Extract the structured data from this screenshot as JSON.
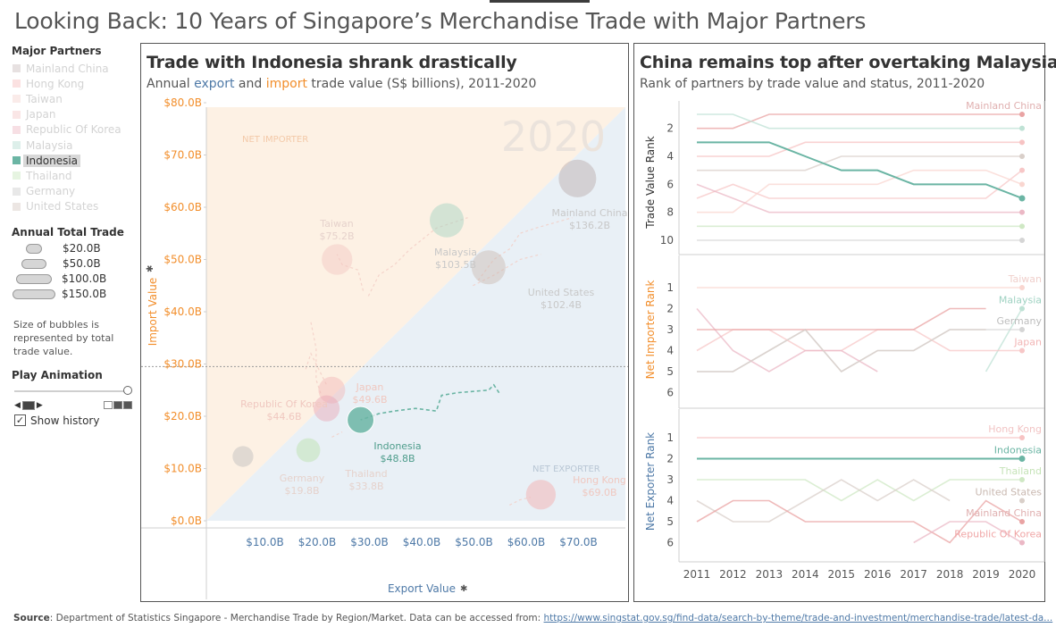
{
  "title": "Looking Back: 10 Years of Singapore’s Merchandise Trade with Major Partners",
  "sidebar": {
    "partners_title": "Major Partners",
    "partners": [
      {
        "name": "Mainland China",
        "color": "#b9a8a8",
        "active": false
      },
      {
        "name": "Hong Kong",
        "color": "#f4a9a8",
        "active": false
      },
      {
        "name": "Taiwan",
        "color": "#f1c6c0",
        "active": false
      },
      {
        "name": "Japan",
        "color": "#f2b6b6",
        "active": false
      },
      {
        "name": "Republic Of Korea",
        "color": "#e8a3b3",
        "active": false
      },
      {
        "name": "Malaysia",
        "color": "#9fd2c2",
        "active": false
      },
      {
        "name": "Indonesia",
        "color": "#6bb5a4",
        "active": true
      },
      {
        "name": "Thailand",
        "color": "#b8dfa8",
        "active": false
      },
      {
        "name": "Germany",
        "color": "#bdbdbd",
        "active": false
      },
      {
        "name": "United States",
        "color": "#c9b8b0",
        "active": false
      }
    ],
    "size_title": "Annual Total Trade",
    "size_legend": [
      "$20.0B",
      "$50.0B",
      "$100.0B",
      "$150.0B"
    ],
    "size_note": "Size of bubbles is represented by total trade value.",
    "play_title": "Play Animation",
    "show_history_label": "Show history",
    "show_history_checked": "✓"
  },
  "left_chart": {
    "title": "Trade with Indonesia shrank drastically",
    "subtitle_parts": [
      "Annual ",
      "export",
      " and ",
      "import",
      " trade value (S$ billions), 2011-2020"
    ],
    "year_watermark": "2020",
    "region_labels": {
      "net_importer": "NET IMPORTER",
      "net_exporter": "NET EXPORTER"
    },
    "colors": {
      "export": "#4e79a7",
      "import": "#f28e2b",
      "importer_bg": "#fdf1e4",
      "exporter_bg": "#e9f0f6"
    }
  },
  "right_chart": {
    "title": "China remains top after overtaking Malaysia",
    "subtitle": "Rank of partners by trade value and status, 2011-2020"
  },
  "chart_data": [
    {
      "type": "scatter",
      "title": "Trade with Indonesia shrank drastically",
      "xlabel": "Export Value",
      "ylabel": "Import Value",
      "xlim": [
        0,
        80
      ],
      "ylim": [
        0,
        80
      ],
      "x_ticks": [
        "$10.0B",
        "$20.0B",
        "$30.0B",
        "$40.0B",
        "$50.0B",
        "$60.0B",
        "$70.0B"
      ],
      "y_ticks": [
        "$0.0B",
        "$10.0B",
        "$20.0B",
        "$30.0B",
        "$40.0B",
        "$50.0B",
        "$60.0B",
        "$70.0B",
        "$80.0B"
      ],
      "reference_line_y": 29.5,
      "highlight": "Indonesia",
      "points": [
        {
          "name": "Mainland China",
          "export": 71,
          "import": 65.5,
          "total_label": "$136.2B",
          "color": "#b9a8a8"
        },
        {
          "name": "Malaysia",
          "export": 46,
          "import": 57.5,
          "total_label": "$103.5B",
          "color": "#9fd2c2"
        },
        {
          "name": "United States",
          "export": 54,
          "import": 48.5,
          "total_label": "$102.4B",
          "color": "#c9b8b0"
        },
        {
          "name": "Taiwan",
          "export": 25,
          "import": 50,
          "total_label": "$75.2B",
          "color": "#f1c6c0"
        },
        {
          "name": "Japan",
          "export": 24,
          "import": 25,
          "total_label": "$49.6B",
          "color": "#f2b6b6"
        },
        {
          "name": "Republic Of Korea",
          "export": 23,
          "import": 21.5,
          "total_label": "$44.6B",
          "color": "#e8a3b3"
        },
        {
          "name": "Indonesia",
          "export": 29.5,
          "import": 19.3,
          "total_label": "$48.8B",
          "color": "#6bb5a4"
        },
        {
          "name": "Thailand",
          "export": 19.5,
          "import": 13.5,
          "total_label": "$33.8B",
          "color": "#b8dfa8"
        },
        {
          "name": "Germany",
          "export": 7,
          "import": 12.3,
          "total_label": "$19.8B",
          "color": "#bdbdbd"
        },
        {
          "name": "Hong Kong",
          "export": 64,
          "import": 5,
          "total_label": "$69.0B",
          "color": "#f4a9a8"
        }
      ],
      "indonesia_history": [
        [
          56,
          24.5
        ],
        [
          55,
          26
        ],
        [
          54,
          25
        ],
        [
          48,
          24.5
        ],
        [
          45,
          24
        ],
        [
          44,
          21
        ],
        [
          40,
          21.5
        ],
        [
          36,
          21
        ],
        [
          33,
          20.5
        ],
        [
          31,
          19.8
        ],
        [
          29.5,
          19.3
        ]
      ]
    },
    {
      "type": "line",
      "title": "China remains top after overtaking Malaysia",
      "x": [
        "2011",
        "2012",
        "2013",
        "2014",
        "2015",
        "2016",
        "2017",
        "2018",
        "2019",
        "2020"
      ],
      "panels": [
        {
          "ylabel": "Trade Value Rank",
          "ylim": [
            1,
            10
          ],
          "y_ticks": [
            "2",
            "4",
            "6",
            "8",
            "10"
          ],
          "series": [
            {
              "name": "Mainland China",
              "color": "#e9a3a3",
              "highlight": false,
              "values": [
                2,
                2,
                1,
                1,
                1,
                1,
                1,
                1,
                1,
                1
              ]
            },
            {
              "name": "Malaysia",
              "color": "#bfe2d5",
              "highlight": false,
              "values": [
                1,
                1,
                2,
                2,
                2,
                2,
                2,
                2,
                2,
                2
              ]
            },
            {
              "name": "Indonesia",
              "color": "#6bb5a4",
              "highlight": true,
              "values": [
                3,
                3,
                3,
                4,
                5,
                5,
                6,
                6,
                6,
                7
              ]
            },
            {
              "name": "Hong Kong",
              "color": "#f7c3c3",
              "highlight": false,
              "values": [
                4,
                4,
                4,
                3,
                3,
                3,
                3,
                3,
                3,
                3
              ]
            },
            {
              "name": "United States",
              "color": "#d9cfc9",
              "highlight": false,
              "values": [
                5,
                5,
                5,
                5,
                4,
                4,
                4,
                4,
                4,
                4
              ]
            },
            {
              "name": "Japan",
              "color": "#f7c7c7",
              "highlight": false,
              "values": [
                7,
                6,
                7,
                7,
                7,
                7,
                7,
                7,
                7,
                5
              ]
            },
            {
              "name": "Taiwan",
              "color": "#f9d6d0",
              "highlight": false,
              "values": [
                8,
                8,
                6,
                6,
                6,
                6,
                5,
                5,
                5,
                6
              ]
            },
            {
              "name": "Republic Of Korea",
              "color": "#ebb8c5",
              "highlight": false,
              "values": [
                6,
                7,
                8,
                8,
                8,
                8,
                8,
                8,
                8,
                8
              ]
            },
            {
              "name": "Thailand",
              "color": "#cfe8c4",
              "highlight": false,
              "values": [
                9,
                9,
                9,
                9,
                9,
                9,
                9,
                9,
                9,
                9
              ]
            },
            {
              "name": "Germany",
              "color": "#d5d5d5",
              "highlight": false,
              "values": [
                10,
                10,
                10,
                10,
                10,
                10,
                10,
                10,
                10,
                10
              ]
            }
          ],
          "end_labels": [
            {
              "text": "Mainland China",
              "rank": 1,
              "color": "#e0b0b0"
            }
          ]
        },
        {
          "ylabel": "Net Importer Rank",
          "ylim": [
            1,
            6
          ],
          "y_ticks": [
            "1",
            "2",
            "3",
            "4",
            "5",
            "6"
          ],
          "series": [
            {
              "name": "Taiwan",
              "color": "#f9d6d0",
              "highlight": false,
              "values": [
                1,
                1,
                1,
                1,
                1,
                1,
                1,
                1,
                1,
                1
              ]
            },
            {
              "name": "Malaysia",
              "color": "#bfe2d5",
              "highlight": false,
              "values": [
                null,
                null,
                null,
                null,
                null,
                null,
                null,
                null,
                5,
                2
              ]
            },
            {
              "name": "Germany",
              "color": "#d5d5d5",
              "highlight": false,
              "values": [
                5,
                5,
                4,
                3,
                5,
                4,
                4,
                3,
                3,
                3
              ]
            },
            {
              "name": "Japan",
              "color": "#f7c7c7",
              "highlight": false,
              "values": [
                4,
                3,
                3,
                4,
                4,
                3,
                3,
                4,
                4,
                4
              ]
            },
            {
              "name": "Republic Of Korea",
              "color": "#ebb8c5",
              "highlight": false,
              "values": [
                2,
                4,
                5,
                4,
                4,
                5,
                null,
                null,
                null,
                null
              ]
            },
            {
              "name": "Mainland China",
              "color": "#e9a3a3",
              "highlight": false,
              "values": [
                3,
                3,
                3,
                3,
                3,
                3,
                3,
                2,
                2,
                null
              ]
            },
            {
              "name": "United States",
              "color": "#d9cfc9",
              "highlight": false,
              "values": [
                5,
                5,
                4,
                3,
                5,
                4,
                4,
                3,
                3,
                null
              ]
            }
          ],
          "end_labels": [
            {
              "text": "Taiwan",
              "rank": 1,
              "color": "#f0d0cc"
            },
            {
              "text": "Malaysia",
              "rank": 2,
              "color": "#9fd2c2"
            },
            {
              "text": "Germany",
              "rank": 3,
              "color": "#bdbdbd"
            },
            {
              "text": "Japan",
              "rank": 4,
              "color": "#f2b6b6"
            }
          ]
        },
        {
          "ylabel": "Net Exporter Rank",
          "ylim": [
            1,
            6
          ],
          "y_ticks": [
            "1",
            "2",
            "3",
            "4",
            "5",
            "6"
          ],
          "series": [
            {
              "name": "Hong Kong",
              "color": "#f7c3c3",
              "highlight": false,
              "values": [
                1,
                1,
                1,
                1,
                1,
                1,
                1,
                1,
                1,
                1
              ]
            },
            {
              "name": "Indonesia",
              "color": "#6bb5a4",
              "highlight": true,
              "values": [
                2,
                2,
                2,
                2,
                2,
                2,
                2,
                2,
                2,
                2
              ]
            },
            {
              "name": "Thailand",
              "color": "#cfe8c4",
              "highlight": false,
              "values": [
                3,
                3,
                3,
                3,
                4,
                3,
                4,
                3,
                3,
                3
              ]
            },
            {
              "name": "United States",
              "color": "#d9cfc9",
              "highlight": false,
              "values": [
                4,
                5,
                5,
                4,
                3,
                4,
                3,
                4,
                null,
                4
              ]
            },
            {
              "name": "Mainland China",
              "color": "#e9a3a3",
              "highlight": false,
              "values": [
                5,
                4,
                4,
                5,
                5,
                5,
                5,
                6,
                4,
                5
              ]
            },
            {
              "name": "Republic Of Korea",
              "color": "#ebb8c5",
              "highlight": false,
              "values": [
                null,
                null,
                null,
                null,
                null,
                null,
                6,
                5,
                5,
                6
              ]
            }
          ],
          "end_labels": [
            {
              "text": "Hong Kong",
              "rank": 1,
              "color": "#f2c4c4"
            },
            {
              "text": "Indonesia",
              "rank": 2,
              "color": "#6bb5a4"
            },
            {
              "text": "Thailand",
              "rank": 3,
              "color": "#c6e3b8"
            },
            {
              "text": "United States",
              "rank": 4,
              "color": "#c9b8b0"
            },
            {
              "text": "Mainland China",
              "rank": 5,
              "color": "#e0b0b0"
            },
            {
              "text": "Republic Of Korea",
              "rank": 6,
              "color": "#f0a6a6"
            }
          ]
        }
      ]
    }
  ],
  "source": {
    "label": "Source",
    "text": ": Department of Statistics Singapore - Merchandise Trade by Region/Market. Data can be accessed from: ",
    "link": "https://www.singstat.gov.sg/find-data/search-by-theme/trade-and-investment/merchandise-trade/latest-da..."
  }
}
